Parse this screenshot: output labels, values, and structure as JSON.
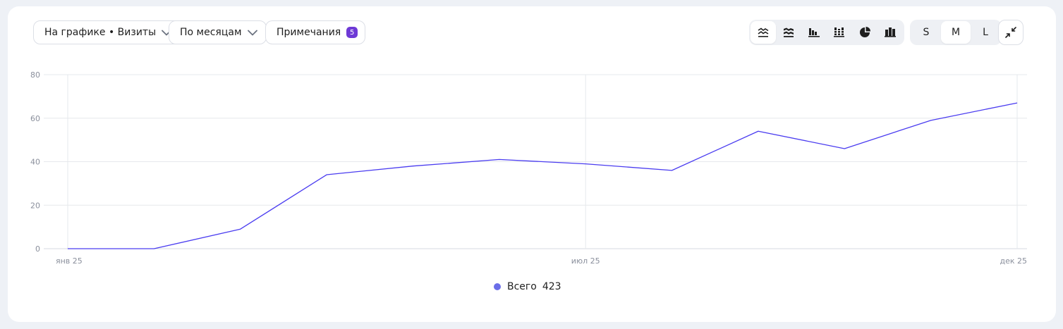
{
  "toolbar": {
    "metric_label": "На графике • Визиты",
    "period_label": "По месяцам",
    "notes_label": "Примечания",
    "notes_count": "5",
    "chart_types": [
      {
        "name": "line-chart-icon",
        "active": true
      },
      {
        "name": "area-chart-icon",
        "active": false
      },
      {
        "name": "bar-chart-icon",
        "active": false
      },
      {
        "name": "stacked-bar-icon",
        "active": false
      },
      {
        "name": "pie-chart-icon",
        "active": false
      },
      {
        "name": "column-chart-icon",
        "active": false
      }
    ],
    "sizes": [
      "S",
      "M",
      "L"
    ],
    "size_selected": "M"
  },
  "legend": {
    "series_name": "Всего",
    "series_total": "423"
  },
  "colors": {
    "series": "#4a3cf0",
    "legend_dot": "#6b6ee8",
    "badge": "#6e3ad6"
  },
  "chart_data": {
    "type": "line",
    "x_tick_labels": [
      "янв 25",
      "июл 25",
      "дек 25"
    ],
    "x": [
      "янв 25",
      "фев 25",
      "мар 25",
      "апр 25",
      "май 25",
      "июн 25",
      "июл 25",
      "авг 25",
      "сен 25",
      "окт 25",
      "ноя 25",
      "дек 25"
    ],
    "series": [
      {
        "name": "Всего",
        "values": [
          0,
          0,
          9,
          34,
          38,
          41,
          39,
          36,
          54,
          46,
          59,
          67
        ]
      }
    ],
    "ylim": [
      0,
      80
    ],
    "y_ticks": [
      0,
      20,
      40,
      60,
      80
    ],
    "grid": true,
    "legend_position": "bottom"
  }
}
